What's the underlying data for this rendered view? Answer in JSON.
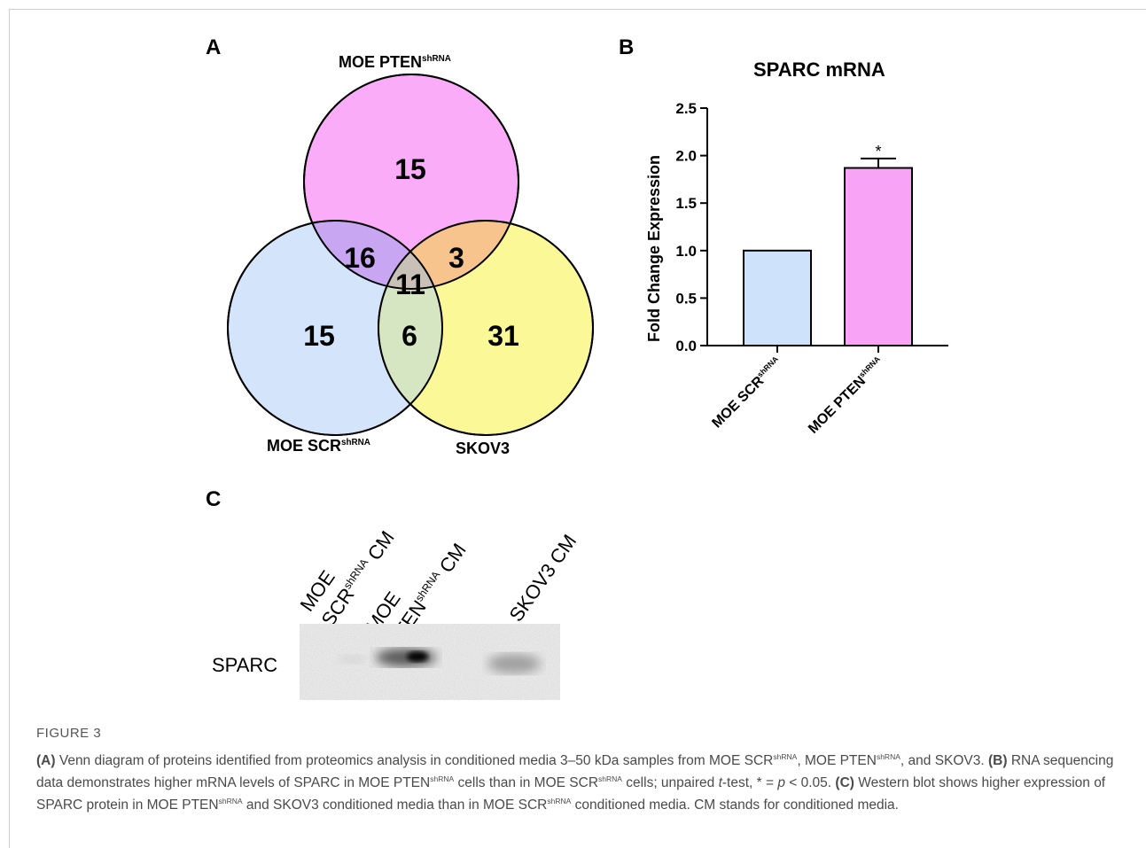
{
  "panel_a": {
    "letter": "A",
    "sets": [
      {
        "name": "MOE PTEN",
        "sup": "shRNA",
        "color": "#f9a3f7"
      },
      {
        "name": "MOE SCR",
        "sup": "shRNA",
        "color": "#cfe2fb"
      },
      {
        "name": "SKOV3",
        "sup": "",
        "color": "#fbf78c"
      }
    ],
    "regions": {
      "pten_only": "15",
      "scr_only": "15",
      "skov3_only": "31",
      "pten_scr": "16",
      "pten_skov3": "3",
      "scr_skov3": "6",
      "all_three": "11"
    }
  },
  "panel_b": {
    "letter": "B",
    "chart_data": {
      "type": "bar",
      "title": "SPARC mRNA",
      "ylabel": "Fold Change Expression",
      "ylim": [
        0.0,
        2.5
      ],
      "yticks": [
        "0.0",
        "0.5",
        "1.0",
        "1.5",
        "2.0",
        "2.5"
      ],
      "categories": [
        {
          "name": "MOE SCR",
          "sup": "shRNA"
        },
        {
          "name": "MOE PTEN",
          "sup": "shRNA"
        }
      ],
      "values": [
        1.0,
        1.87
      ],
      "error": [
        0,
        0.1
      ],
      "colors": [
        "#cfe2fb",
        "#f9a3f7"
      ],
      "annotation": "*"
    }
  },
  "panel_c": {
    "letter": "C",
    "lanes": [
      {
        "line1": "MOE",
        "line2_pre": "SCR",
        "line2_sup": "shRNA",
        "line2_post": " CM"
      },
      {
        "line1": "MOE",
        "line2_pre": "PTEN",
        "line2_sup": "shRNA",
        "line2_post": " CM"
      },
      {
        "line1": "",
        "line2_pre": "SKOV3 CM",
        "line2_sup": "",
        "line2_post": ""
      }
    ],
    "row_label": "SPARC"
  },
  "caption": {
    "figure_label": "FIGURE 3",
    "a_tag": "(A)",
    "a_text1": " Venn diagram of proteins identified from proteomics analysis in conditioned media 3–50 kDa samples from MOE SCR",
    "a_text2": ", MOE PTEN",
    "a_text3": ", and SKOV3. ",
    "b_tag": "(B)",
    "b_text1": " RNA sequencing data demonstrates higher mRNA levels of SPARC in MOE PTEN",
    "b_text2": " cells than in MOE SCR",
    "b_text3": " cells; unpaired ",
    "b_t": "t",
    "b_text4": "-test, * = ",
    "b_p": "p",
    "b_text5": " < 0.05. ",
    "c_tag": "(C)",
    "c_text1": " Western blot shows higher expression of SPARC protein in MOE PTEN",
    "c_text2": " and SKOV3 conditioned media than in MOE SCR",
    "c_text3": " conditioned media. CM stands for conditioned media.",
    "sup": "shRNA"
  }
}
